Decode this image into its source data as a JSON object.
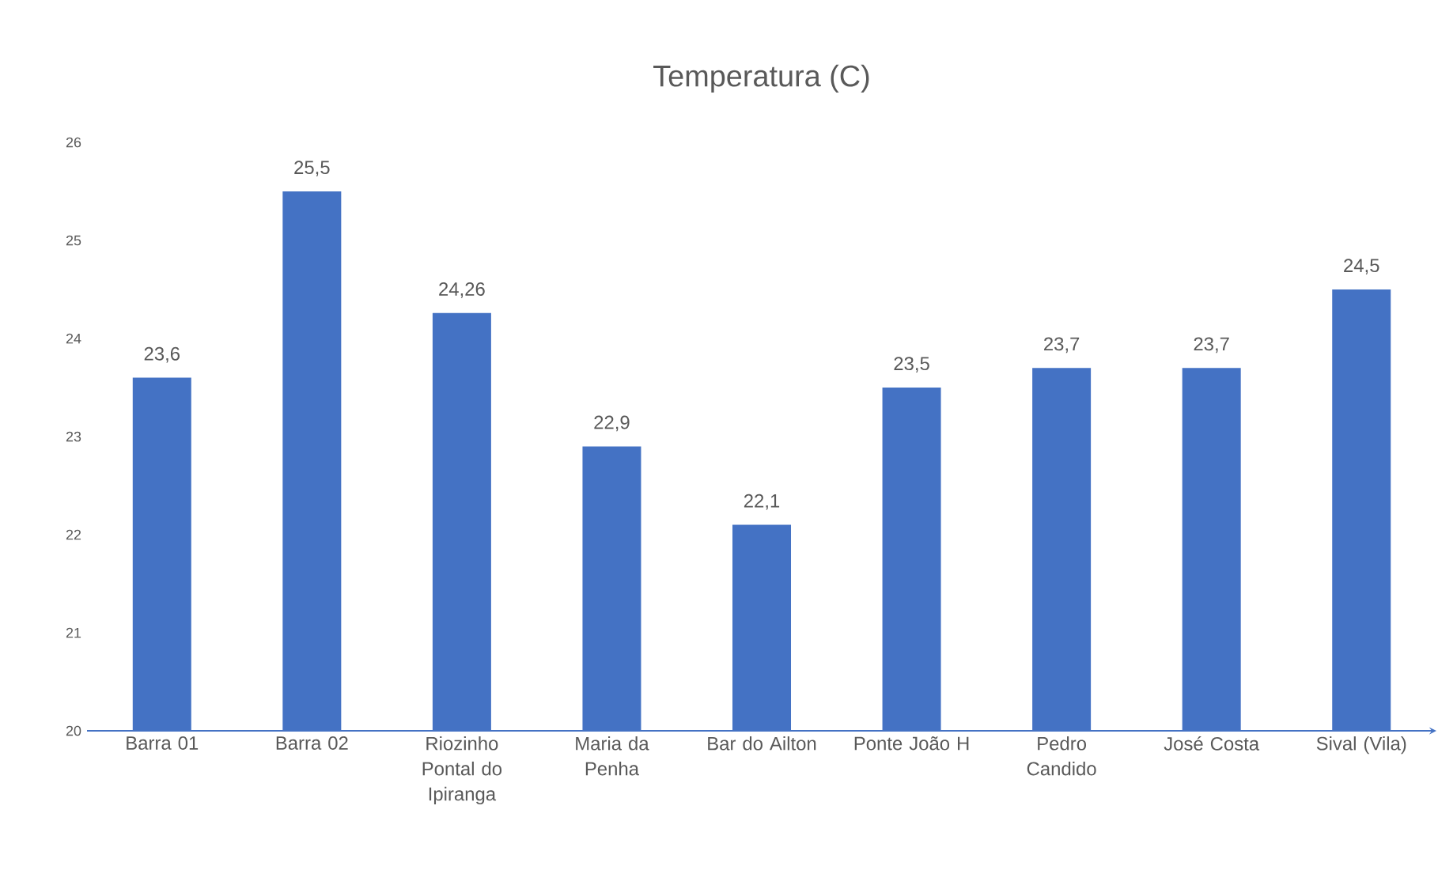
{
  "chart_data": {
    "type": "bar",
    "title": "Temperatura (C)",
    "categories": [
      "Barra 01",
      "Barra 02",
      "Riozinho Pontal do Ipiranga",
      "Maria da Penha",
      "Bar do Ailton",
      "Ponte João H",
      "Pedro Candido",
      "José Costa",
      "Sival (Vila)"
    ],
    "values": [
      23.6,
      25.5,
      24.26,
      22.9,
      22.1,
      23.5,
      23.7,
      23.7,
      24.5
    ],
    "value_labels": [
      "23,6",
      "25,5",
      "24,26",
      "22,9",
      "22,1",
      "23,5",
      "23,7",
      "23,7",
      "24,5"
    ],
    "color": "#4472c4",
    "ylim": [
      20,
      26
    ],
    "yticks": [
      20,
      21,
      22,
      23,
      24,
      25,
      26
    ]
  }
}
